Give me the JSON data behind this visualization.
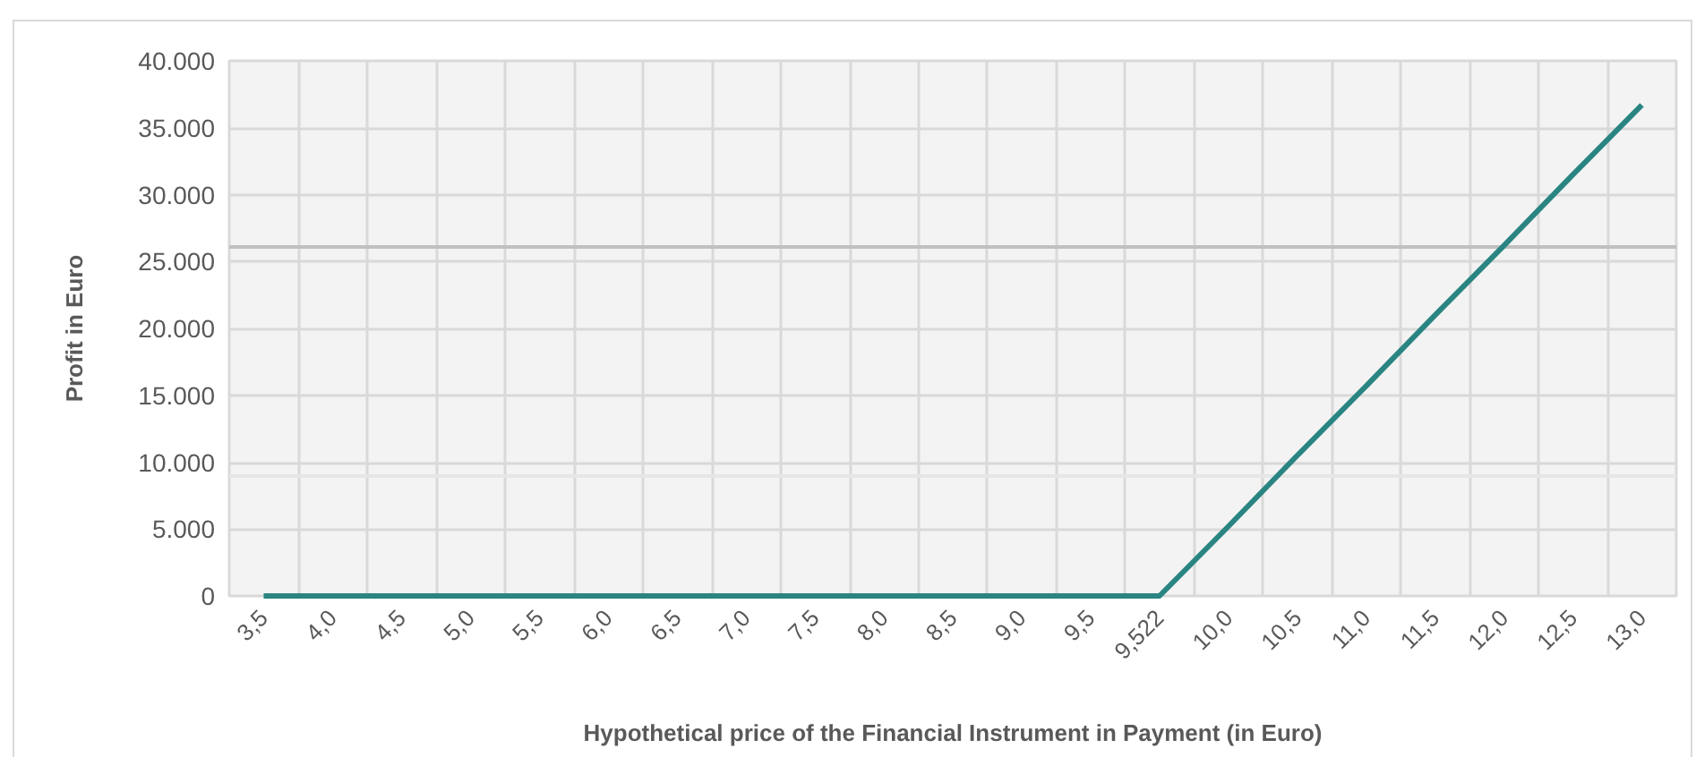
{
  "chart_data": {
    "type": "line",
    "xlabel": "Hypothetical price of the Financial Instrument in Payment (in Euro)",
    "ylabel": "Profit in Euro",
    "categories": [
      "3,5",
      "4,0",
      "4,5",
      "5,0",
      "5,5",
      "6,0",
      "6,5",
      "7,0",
      "7,5",
      "8,0",
      "8,5",
      "9,0",
      "9,5",
      "9,522",
      "10,0",
      "10,5",
      "11,0",
      "11,5",
      "12,0",
      "12,5",
      "13,0"
    ],
    "series": [
      {
        "color": "#2a8582",
        "values": [
          0,
          0,
          0,
          0,
          0,
          0,
          0,
          0,
          0,
          0,
          0,
          0,
          0,
          0,
          5200,
          10500,
          15700,
          21000,
          26200,
          31500,
          36700
        ]
      }
    ],
    "ylim": [
      0,
      40000
    ],
    "yticks": [
      {
        "value": 0,
        "label": "0"
      },
      {
        "value": 5000,
        "label": "5.000"
      },
      {
        "value": 10000,
        "label": "10.000"
      },
      {
        "value": 15000,
        "label": "15.000"
      },
      {
        "value": 20000,
        "label": "20.000"
      },
      {
        "value": 25000,
        "label": "25.000"
      },
      {
        "value": 30000,
        "label": "30.000"
      },
      {
        "value": 35000,
        "label": "35.000"
      },
      {
        "value": 40000,
        "label": "40.000"
      }
    ],
    "ref_lines": [
      {
        "axis": "y",
        "value": 26100,
        "color": "#c0c0c0"
      },
      {
        "axis": "y",
        "value": 9000,
        "color": "#e6e6e6"
      }
    ],
    "grid": true,
    "marker": "none",
    "line_style": "solid"
  }
}
